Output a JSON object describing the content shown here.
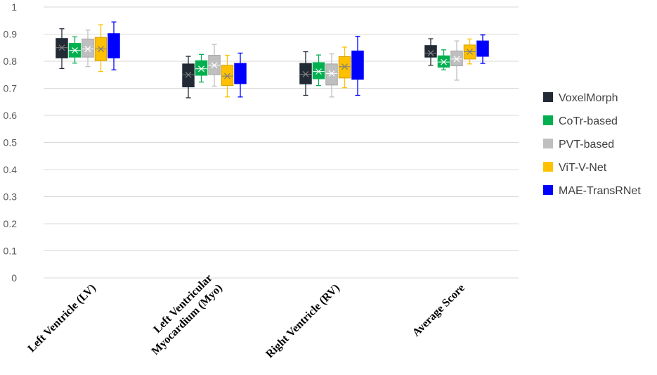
{
  "chart_data": {
    "type": "box",
    "title": "",
    "xlabel": "",
    "ylabel": "",
    "ylim": [
      0,
      1
    ],
    "yticks": [
      "0",
      "0.1",
      "0.2",
      "0.3",
      "0.4",
      "0.5",
      "0.6",
      "0.7",
      "0.8",
      "0.9",
      "1"
    ],
    "grid": true,
    "legend_position": "right",
    "categories": [
      [
        "Left Ventricle (LV)"
      ],
      [
        "Left Ventricular",
        "Myocardium (Myo)"
      ],
      [
        "Right Ventricle (RV)"
      ],
      [
        "Average Score"
      ]
    ],
    "series": [
      {
        "name": "VoxelMorph",
        "color": "#222a35",
        "mean_marker_color": "#7f7f7f",
        "boxes": [
          {
            "min": 0.773,
            "q1": 0.812,
            "median": 0.85,
            "mean": 0.85,
            "q3": 0.884,
            "max": 0.92
          },
          {
            "min": 0.665,
            "q1": 0.705,
            "median": 0.75,
            "mean": 0.75,
            "q3": 0.79,
            "max": 0.818
          },
          {
            "min": 0.674,
            "q1": 0.716,
            "median": 0.752,
            "mean": 0.752,
            "q3": 0.792,
            "max": 0.835
          },
          {
            "min": 0.785,
            "q1": 0.815,
            "median": 0.83,
            "mean": 0.83,
            "q3": 0.858,
            "max": 0.883
          }
        ]
      },
      {
        "name": "CoTr-based",
        "color": "#00b050",
        "mean_marker_color": "#ffffff",
        "boxes": [
          {
            "min": 0.793,
            "q1": 0.815,
            "median": 0.84,
            "mean": 0.84,
            "q3": 0.866,
            "max": 0.89
          },
          {
            "min": 0.723,
            "q1": 0.748,
            "median": 0.772,
            "mean": 0.772,
            "q3": 0.802,
            "max": 0.825
          },
          {
            "min": 0.71,
            "q1": 0.735,
            "median": 0.762,
            "mean": 0.762,
            "q3": 0.795,
            "max": 0.823
          },
          {
            "min": 0.768,
            "q1": 0.778,
            "median": 0.797,
            "mean": 0.797,
            "q3": 0.82,
            "max": 0.842
          }
        ]
      },
      {
        "name": "PVT-based",
        "color": "#bfbfbf",
        "mean_marker_color": "#ffffff",
        "boxes": [
          {
            "min": 0.78,
            "q1": 0.815,
            "median": 0.845,
            "mean": 0.845,
            "q3": 0.882,
            "max": 0.915
          },
          {
            "min": 0.708,
            "q1": 0.75,
            "median": 0.785,
            "mean": 0.785,
            "q3": 0.822,
            "max": 0.862
          },
          {
            "min": 0.668,
            "q1": 0.712,
            "median": 0.755,
            "mean": 0.755,
            "q3": 0.79,
            "max": 0.827
          },
          {
            "min": 0.73,
            "q1": 0.783,
            "median": 0.808,
            "mean": 0.808,
            "q3": 0.838,
            "max": 0.875
          }
        ]
      },
      {
        "name": "ViT-V-Net",
        "color": "#ffc000",
        "mean_marker_color": "#7f7f7f",
        "boxes": [
          {
            "min": 0.762,
            "q1": 0.802,
            "median": 0.845,
            "mean": 0.845,
            "q3": 0.888,
            "max": 0.935
          },
          {
            "min": 0.668,
            "q1": 0.71,
            "median": 0.745,
            "mean": 0.745,
            "q3": 0.785,
            "max": 0.822
          },
          {
            "min": 0.702,
            "q1": 0.738,
            "median": 0.78,
            "mean": 0.78,
            "q3": 0.817,
            "max": 0.852
          },
          {
            "min": 0.79,
            "q1": 0.808,
            "median": 0.835,
            "mean": 0.835,
            "q3": 0.86,
            "max": 0.882
          }
        ]
      },
      {
        "name": "MAE-TransRNet",
        "color": "#0000ff",
        "mean_marker_color": "#0000ff",
        "boxes": [
          {
            "min": 0.768,
            "q1": 0.812,
            "median": 0.86,
            "mean": 0.86,
            "q3": 0.902,
            "max": 0.945
          },
          {
            "min": 0.668,
            "q1": 0.717,
            "median": 0.755,
            "mean": 0.755,
            "q3": 0.792,
            "max": 0.83
          },
          {
            "min": 0.674,
            "q1": 0.733,
            "median": 0.785,
            "mean": 0.785,
            "q3": 0.838,
            "max": 0.892
          },
          {
            "min": 0.792,
            "q1": 0.818,
            "median": 0.848,
            "mean": 0.848,
            "q3": 0.875,
            "max": 0.897
          }
        ]
      }
    ]
  }
}
